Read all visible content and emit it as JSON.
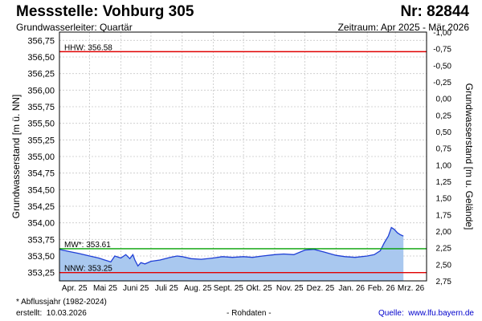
{
  "header": {
    "title": "Messstelle: Vohburg 305",
    "number": "Nr: 82844",
    "subtitle": "Grundwasserleiter: Quartär",
    "period": "Zeitraum: Apr 2025 - Mär 2026"
  },
  "footer": {
    "footnote": "* Abflussjahr (1982-2024)",
    "created_label": "erstellt:",
    "created_date": "10.03.2026",
    "rawdata": "- Rohdaten -",
    "source_label": "Quelle:",
    "source_url": "www.lfu.bayern.de"
  },
  "colors": {
    "fill": "#a9c8ef",
    "line": "#1f3fd6",
    "hhw": "#e00000",
    "nnw": "#e00000",
    "mw": "#00a000",
    "grid": "#c8c8c8"
  },
  "chart_data": {
    "type": "area",
    "ylabel": "Grundwasserstand [m ü. NN]",
    "ylabel_right": "Grundwasserstand [m u. Gelände]",
    "ylim": [
      353.125,
      356.875
    ],
    "yticks": [
      "356,75",
      "356,50",
      "356,25",
      "356,00",
      "355,75",
      "355,50",
      "355,25",
      "355,00",
      "354,75",
      "354,50",
      "354,25",
      "354,00",
      "353,75",
      "353,50",
      "353,25"
    ],
    "yticks_right": [
      "-1,00",
      "-0,75",
      "-0,50",
      "-0,25",
      "0,00",
      "0,25",
      "0,50",
      "0,75",
      "1,00",
      "1,25",
      "1,50",
      "1,75",
      "2,00",
      "2,25",
      "2,50",
      "2,75"
    ],
    "right_axis_range": [
      -1.0,
      2.75
    ],
    "x_start": "2025-04-01",
    "x_end": "2026-03-31",
    "xticks": [
      "Apr. 25",
      "Mai 25",
      "Juni 25",
      "Juli 25",
      "Aug. 25",
      "Sept. 25",
      "Okt. 25",
      "Nov. 25",
      "Dez. 25",
      "Jan. 26",
      "Feb. 26",
      "Mrz. 26"
    ],
    "grid": true,
    "reference_lines": [
      {
        "label": "HHW: 356.58",
        "value": 356.58
      },
      {
        "label": "MW*: 353.61",
        "value": 353.61
      },
      {
        "label": "NNW: 353.25",
        "value": 353.25
      }
    ],
    "series": [
      {
        "x": [
          "2025-04-01",
          "2025-04-10",
          "2025-04-20",
          "2025-05-01",
          "2025-05-10",
          "2025-05-18",
          "2025-05-22",
          "2025-05-26",
          "2025-06-01",
          "2025-06-06",
          "2025-06-10",
          "2025-06-13",
          "2025-06-15",
          "2025-06-18",
          "2025-06-21",
          "2025-06-25",
          "2025-07-01",
          "2025-07-10",
          "2025-07-20",
          "2025-07-27",
          "2025-08-01",
          "2025-08-10",
          "2025-08-20",
          "2025-09-01",
          "2025-09-10",
          "2025-09-20",
          "2025-10-01",
          "2025-10-10",
          "2025-10-20",
          "2025-11-01",
          "2025-11-10",
          "2025-11-20",
          "2025-12-01",
          "2025-12-10",
          "2025-12-20",
          "2026-01-01",
          "2026-01-10",
          "2026-01-20",
          "2026-02-01",
          "2026-02-08",
          "2026-02-14",
          "2026-02-18",
          "2026-02-22",
          "2026-02-25",
          "2026-02-28",
          "2026-03-03",
          "2026-03-06",
          "2026-03-09"
        ],
        "values": [
          353.6,
          353.57,
          353.54,
          353.5,
          353.47,
          353.43,
          353.41,
          353.5,
          353.47,
          353.52,
          353.46,
          353.52,
          353.44,
          353.35,
          353.4,
          353.38,
          353.42,
          353.44,
          353.48,
          353.5,
          353.49,
          353.46,
          353.45,
          353.47,
          353.49,
          353.48,
          353.49,
          353.48,
          353.5,
          353.52,
          353.53,
          353.52,
          353.59,
          353.6,
          353.56,
          353.51,
          353.49,
          353.48,
          353.5,
          353.52,
          353.58,
          353.7,
          353.8,
          353.93,
          353.9,
          353.85,
          353.82,
          353.8
        ]
      }
    ]
  }
}
